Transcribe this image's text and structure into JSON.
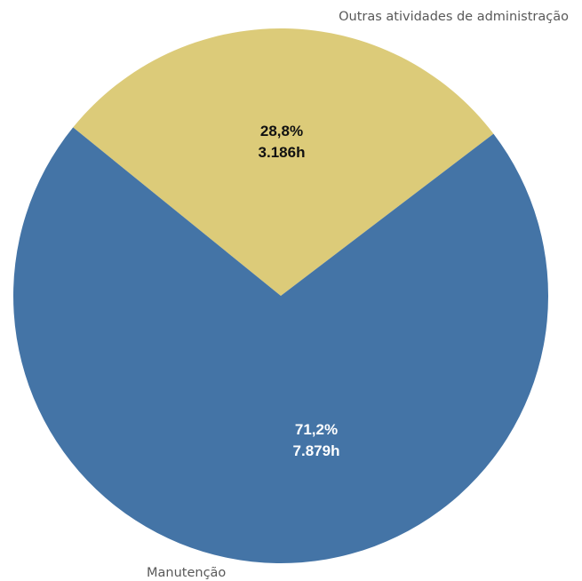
{
  "chart_data": {
    "type": "pie",
    "slices": [
      {
        "category": "Outras atividades de administração",
        "percent_label": "28,8%",
        "value_label": "3.186h",
        "value": 3186,
        "percent": 28.8,
        "color": "#dccb79",
        "label_color": "#111111"
      },
      {
        "category": "Manutenção",
        "percent_label": "71,2%",
        "value_label": "7.879h",
        "value": 7879,
        "percent": 71.2,
        "color": "#4474a6",
        "label_color": "#ffffff"
      }
    ],
    "legend": "none"
  }
}
